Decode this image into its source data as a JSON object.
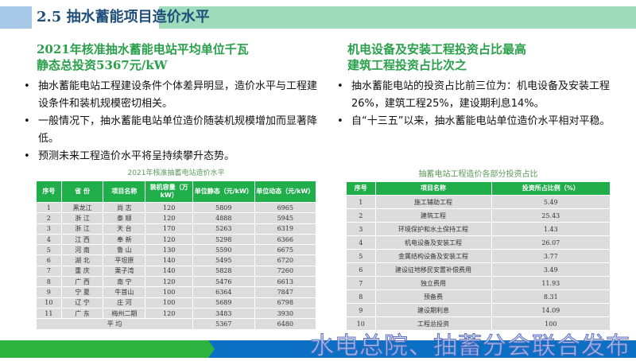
{
  "header": {
    "title": "2.5 抽水蓄能项目造价水平"
  },
  "left": {
    "heading_line1": "2021年核准抽水蓄能电站平均单位千瓦",
    "heading_line2": "静态总投资5367元/kW",
    "bullets": [
      "抽水蓄能电站工程建设条件个体差异明显，造价水平与工程建设条件和装机规模密切相关。",
      "一般情况下，抽水蓄能电站单位造价随装机规模增加而显著降低。",
      "预测未来工程造价水平将呈持续攀升态势。"
    ],
    "table_title": "2021年核准抽蓄电站造价水平",
    "columns": [
      "序号",
      "省 份",
      "项目名称",
      "装机容量（万kW）",
      "单位静态（元/kW）",
      "单位动态（元/kW）"
    ],
    "rows": [
      [
        "1",
        "黑龙江",
        "尚 志",
        "120",
        "5809",
        "6965"
      ],
      [
        "2",
        "浙 江",
        "泰 顺",
        "120",
        "4888",
        "5945"
      ],
      [
        "3",
        "浙 江",
        "天 台",
        "170",
        "5263",
        "6319"
      ],
      [
        "4",
        "江 西",
        "奉 新",
        "120",
        "5298",
        "6366"
      ],
      [
        "5",
        "河 南",
        "鲁 山",
        "130",
        "5590",
        "6675"
      ],
      [
        "6",
        "湖 北",
        "平坦原",
        "140",
        "5495",
        "6720"
      ],
      [
        "7",
        "重 庆",
        "栗子湾",
        "140",
        "5828",
        "7260"
      ],
      [
        "8",
        "广 西",
        "南 宁",
        "120",
        "5476",
        "6613"
      ],
      [
        "9",
        "宁 夏",
        "牛首山",
        "100",
        "6364",
        "7847"
      ],
      [
        "10",
        "辽 宁",
        "庄 河",
        "100",
        "5689",
        "6798"
      ],
      [
        "11",
        "广 东",
        "梅州二期",
        "120",
        "3483",
        "3930"
      ]
    ],
    "avg": {
      "label": "平 均",
      "static": "5367",
      "dynamic": "6480"
    }
  },
  "right": {
    "heading_line1": "机电设备及安装工程投资占比最高",
    "heading_line2": "建筑工程投资占比次之",
    "bullets": [
      "抽水蓄能电站的投资占比前三位为：机电设备及安装工程26%，建筑工程25%，建设期利息14%。",
      "自“十三五”以来，抽水蓄能电站单位造价水平相对平稳。"
    ],
    "table_title": "抽蓄电站工程造价各部分投资占比",
    "columns": [
      "序号",
      "项目名称",
      "投资所占比例（%）"
    ],
    "rows": [
      [
        "1",
        "施工辅助工程",
        "5.49"
      ],
      [
        "2",
        "建筑工程",
        "25.43"
      ],
      [
        "3",
        "环境保护和水土保持工程",
        "1.43"
      ],
      [
        "4",
        "机电设备及安装工程",
        "26.07"
      ],
      [
        "5",
        "金属结构设备及安装工程",
        "3.77"
      ],
      [
        "6",
        "建设征地移民安置补偿费用",
        "3.49"
      ],
      [
        "7",
        "独立费用",
        "11.93"
      ],
      [
        "8",
        "预备费",
        "8.31"
      ],
      [
        "9",
        "建设期利息",
        "14.09"
      ],
      [
        "10",
        "工程总投资",
        "100"
      ]
    ]
  },
  "footer": {
    "watermark": "水电总院、抽蓄分会联合发布"
  },
  "colors": {
    "accent_green": "#1fae4a",
    "title_blue": "#1f4e79",
    "band_blue": "#0b6fc4"
  }
}
